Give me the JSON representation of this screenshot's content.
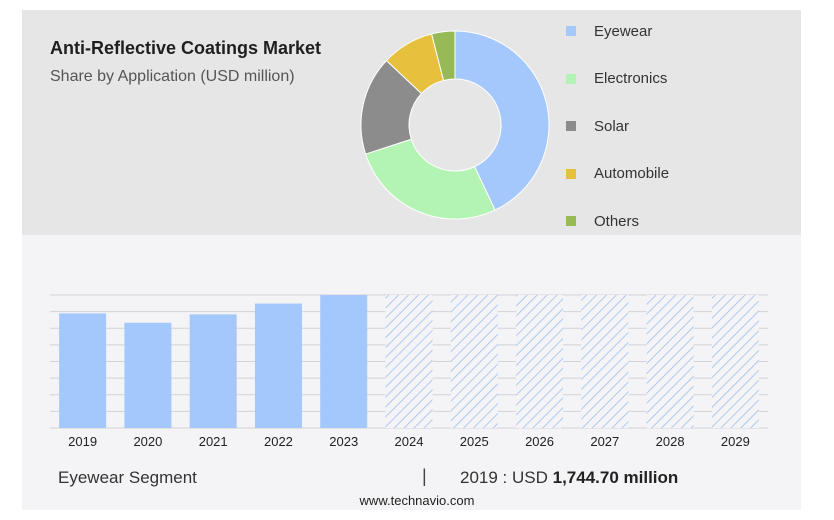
{
  "chart_data": [
    {
      "type": "pie",
      "title": "Anti-Reflective Coatings Market",
      "subtitle": "Share by Application (USD million)",
      "donut": true,
      "legend_placement": "right",
      "categories": [
        "Eyewear",
        "Electronics",
        "Solar",
        "Automobile",
        "Others"
      ],
      "values": [
        43,
        27,
        17,
        9,
        4
      ],
      "colors": [
        "#a4c8fb",
        "#b3f3b3",
        "#8c8c8c",
        "#e7c13e",
        "#97ba56"
      ]
    },
    {
      "type": "bar",
      "title": "",
      "xlabel": "",
      "ylabel": "",
      "categories": [
        "2019",
        "2020",
        "2021",
        "2022",
        "2023",
        "2024",
        "2025",
        "2026",
        "2027",
        "2028",
        "2029"
      ],
      "values": [
        1744.7,
        1602,
        1730,
        1895,
        2025,
        null,
        null,
        null,
        null,
        null,
        null
      ],
      "forecast": [
        false,
        false,
        false,
        false,
        false,
        true,
        true,
        true,
        true,
        true,
        true
      ],
      "ylim": [
        0,
        2025
      ],
      "grid": true,
      "bar_color": "#a4c8fb",
      "forecast_hatch_color": "#9dbfec"
    }
  ],
  "footer": {
    "segment_label": "Eyewear Segment",
    "separator": "|",
    "value_prefix": "2019 : USD",
    "value_bold": "1,744.70 million"
  },
  "website": "www.technavio.com"
}
